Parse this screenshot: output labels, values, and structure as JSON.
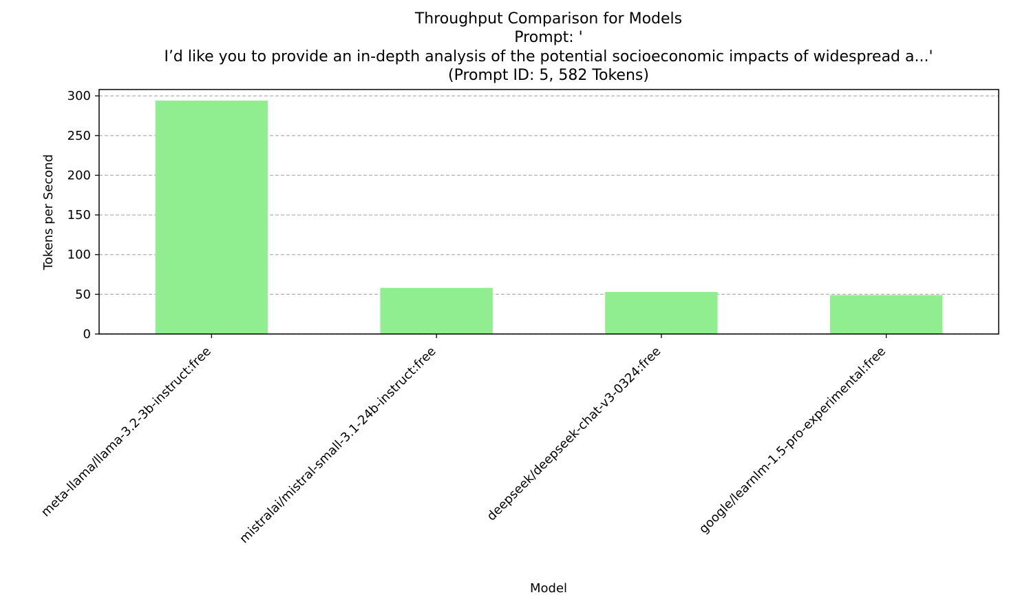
{
  "chart_data": {
    "type": "bar",
    "title_lines": [
      "Throughput Comparison for Models",
      "Prompt: '",
      "I’d like you to provide an in-depth analysis of the potential socioeconomic impacts of widespread a...'",
      "(Prompt ID: 5, 582 Tokens)"
    ],
    "xlabel": "Model",
    "ylabel": "Tokens per Second",
    "categories": [
      "meta-llama/llama-3.2-3b-instruct:free",
      "mistralai/mistral-small-3.1-24b-instruct:free",
      "deepseek/deepseek-chat-v3-0324:free",
      "google/learnlm-1.5-pro-experimental:free"
    ],
    "values": [
      294,
      58,
      53,
      49
    ],
    "ylim": [
      0,
      308
    ],
    "yticks": [
      0,
      50,
      100,
      150,
      200,
      250,
      300
    ],
    "grid": "y-dashed",
    "bar_color": "#90ee90",
    "grid_color": "#b0b0b0"
  }
}
